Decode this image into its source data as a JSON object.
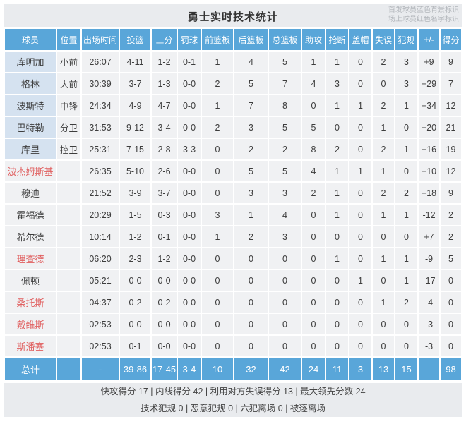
{
  "page": {
    "title": "勇士实时技术统计",
    "legend_line1": "首发球员蓝色背景标识",
    "legend_line2": "场上球员红色名字标识"
  },
  "colors": {
    "header_blue": "#59a6d9",
    "starter_name_bg": "#d5e2f0",
    "oncourt_name_red": "#e05e5e",
    "cell_bg": "#f0f1f3",
    "panel_bg": "#e9ebee",
    "text_dark": "#3d3d3d"
  },
  "chart_data": {
    "type": "table",
    "title": "勇士实时技术统计",
    "columns": [
      "球员",
      "位置",
      "出场时间",
      "投篮",
      "三分",
      "罚球",
      "前篮板",
      "后篮板",
      "总篮板",
      "助攻",
      "抢断",
      "盖帽",
      "失误",
      "犯规",
      "+/-",
      "得分"
    ],
    "rows": [
      {
        "name": "库明加",
        "starter": true,
        "on_court": false,
        "cells": [
          "小前",
          "26:07",
          "4-11",
          "1-2",
          "0-1",
          "1",
          "4",
          "5",
          "1",
          "1",
          "0",
          "2",
          "3",
          "+9",
          "9"
        ]
      },
      {
        "name": "格林",
        "starter": true,
        "on_court": false,
        "cells": [
          "大前",
          "30:39",
          "3-7",
          "1-3",
          "0-0",
          "2",
          "5",
          "7",
          "4",
          "3",
          "0",
          "0",
          "3",
          "+29",
          "7"
        ]
      },
      {
        "name": "波斯特",
        "starter": true,
        "on_court": false,
        "cells": [
          "中锋",
          "24:34",
          "4-9",
          "4-7",
          "0-0",
          "1",
          "7",
          "8",
          "0",
          "1",
          "1",
          "2",
          "1",
          "+34",
          "12"
        ]
      },
      {
        "name": "巴特勒",
        "starter": true,
        "on_court": false,
        "cells": [
          "分卫",
          "31:53",
          "9-12",
          "3-4",
          "0-0",
          "2",
          "3",
          "5",
          "5",
          "0",
          "0",
          "1",
          "0",
          "+20",
          "21"
        ]
      },
      {
        "name": "库里",
        "starter": true,
        "on_court": false,
        "cells": [
          "控卫",
          "25:31",
          "7-15",
          "2-8",
          "3-3",
          "0",
          "2",
          "2",
          "8",
          "2",
          "0",
          "2",
          "1",
          "+16",
          "19"
        ]
      },
      {
        "name": "波杰姆斯基",
        "starter": false,
        "on_court": true,
        "cells": [
          "",
          "26:35",
          "5-10",
          "2-6",
          "0-0",
          "0",
          "5",
          "5",
          "4",
          "1",
          "1",
          "1",
          "0",
          "+10",
          "12"
        ]
      },
      {
        "name": "穆迪",
        "starter": false,
        "on_court": false,
        "cells": [
          "",
          "21:52",
          "3-9",
          "3-7",
          "0-0",
          "0",
          "3",
          "3",
          "2",
          "1",
          "0",
          "2",
          "2",
          "+18",
          "9"
        ]
      },
      {
        "name": "霍福德",
        "starter": false,
        "on_court": false,
        "cells": [
          "",
          "20:29",
          "1-5",
          "0-3",
          "0-0",
          "3",
          "1",
          "4",
          "0",
          "1",
          "0",
          "1",
          "1",
          "-12",
          "2"
        ]
      },
      {
        "name": "希尔德",
        "starter": false,
        "on_court": false,
        "cells": [
          "",
          "10:14",
          "1-2",
          "0-1",
          "0-0",
          "1",
          "2",
          "3",
          "0",
          "0",
          "0",
          "0",
          "0",
          "+7",
          "2"
        ]
      },
      {
        "name": "理查德",
        "starter": false,
        "on_court": true,
        "cells": [
          "",
          "06:20",
          "2-3",
          "1-2",
          "0-0",
          "0",
          "0",
          "0",
          "0",
          "1",
          "0",
          "1",
          "1",
          "-9",
          "5"
        ]
      },
      {
        "name": "佩顿",
        "starter": false,
        "on_court": false,
        "cells": [
          "",
          "05:21",
          "0-0",
          "0-0",
          "0-0",
          "0",
          "0",
          "0",
          "0",
          "0",
          "1",
          "0",
          "1",
          "-17",
          "0"
        ]
      },
      {
        "name": "桑托斯",
        "starter": false,
        "on_court": true,
        "cells": [
          "",
          "04:37",
          "0-2",
          "0-2",
          "0-0",
          "0",
          "0",
          "0",
          "0",
          "0",
          "0",
          "1",
          "2",
          "-4",
          "0"
        ]
      },
      {
        "name": "戴维斯",
        "starter": false,
        "on_court": true,
        "cells": [
          "",
          "02:53",
          "0-0",
          "0-0",
          "0-0",
          "0",
          "0",
          "0",
          "0",
          "0",
          "0",
          "0",
          "0",
          "-3",
          "0"
        ]
      },
      {
        "name": "斯潘塞",
        "starter": false,
        "on_court": true,
        "cells": [
          "",
          "02:53",
          "0-1",
          "0-0",
          "0-0",
          "0",
          "0",
          "0",
          "0",
          "0",
          "0",
          "0",
          "0",
          "-3",
          "0"
        ]
      }
    ],
    "totals": {
      "name": "总计",
      "cells": [
        "",
        "-",
        "39-86",
        "17-45",
        "3-4",
        "10",
        "32",
        "42",
        "24",
        "11",
        "3",
        "13",
        "15",
        "",
        "98"
      ]
    }
  },
  "footer": {
    "separator": " | ",
    "line1_parts": [
      "快攻得分 17",
      "内线得分 42",
      "利用对方失误得分 13",
      "最大领先分数 24"
    ],
    "line2_parts": [
      "技术犯规 0",
      "恶意犯规 0",
      "六犯离场 0",
      "被逐离场"
    ]
  }
}
